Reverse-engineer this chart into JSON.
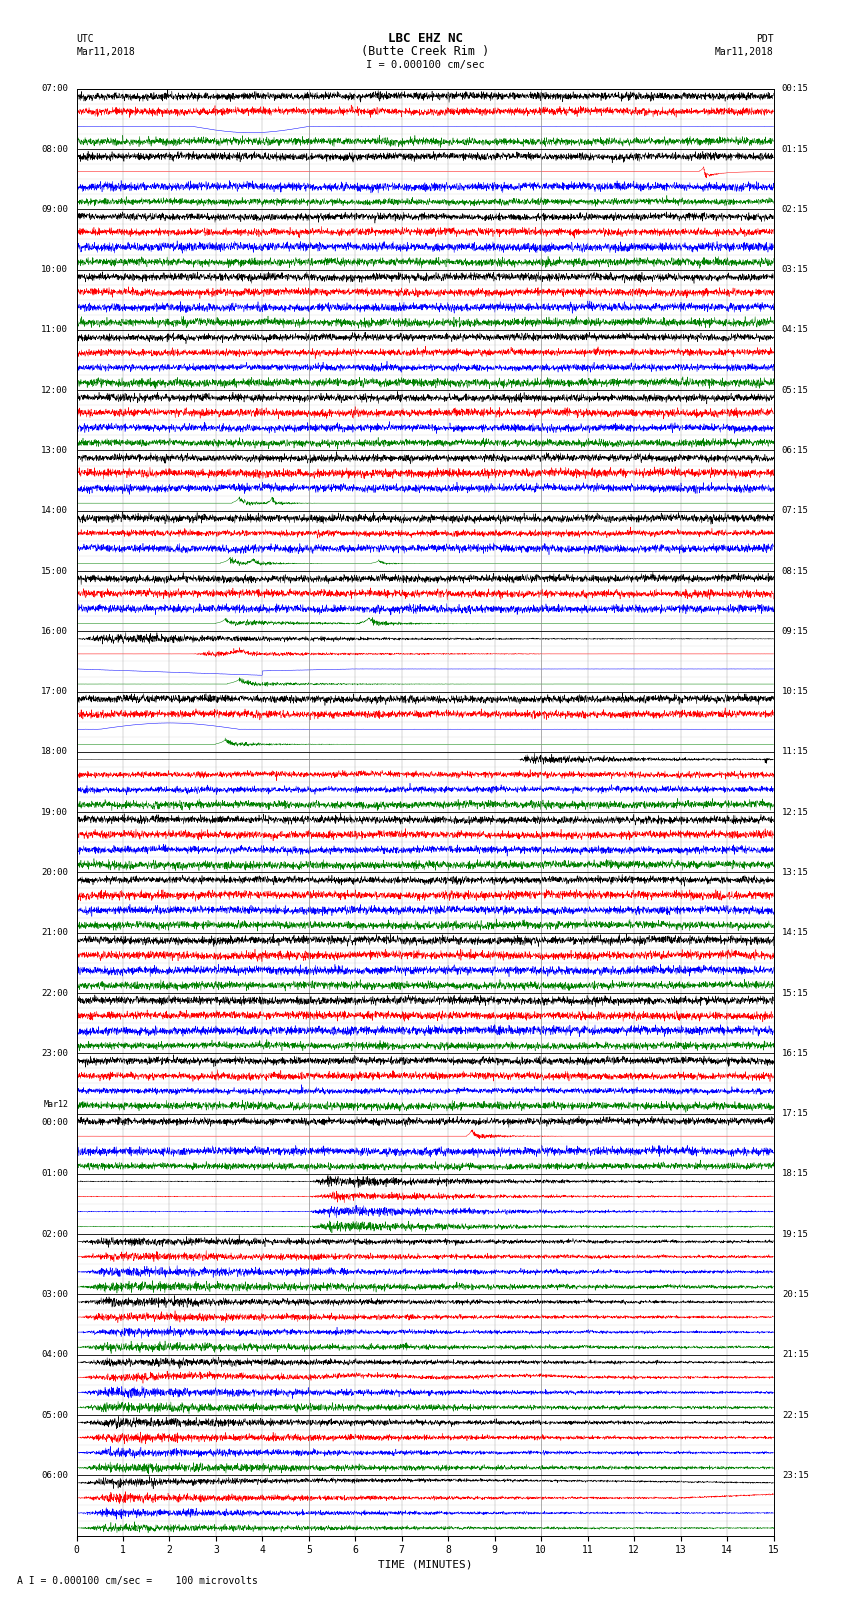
{
  "title_line1": "LBC EHZ NC",
  "title_line2": "(Butte Creek Rim )",
  "scale_label": "I = 0.000100 cm/sec",
  "left_label_top": "UTC",
  "left_label_date": "Mar11,2018",
  "right_label_top": "PDT",
  "right_label_date": "Mar11,2018",
  "xlabel": "TIME (MINUTES)",
  "footer": "A I = 0.000100 cm/sec =    100 microvolts",
  "utc_hour_labels": [
    "07:00",
    "08:00",
    "09:00",
    "10:00",
    "11:00",
    "12:00",
    "13:00",
    "14:00",
    "15:00",
    "16:00",
    "17:00",
    "18:00",
    "19:00",
    "20:00",
    "21:00",
    "22:00",
    "23:00",
    "Mar12\n00:00",
    "01:00",
    "02:00",
    "03:00",
    "04:00",
    "05:00",
    "06:00"
  ],
  "pdt_hour_labels": [
    "00:15",
    "01:15",
    "02:15",
    "03:15",
    "04:15",
    "05:15",
    "06:15",
    "07:15",
    "08:15",
    "09:15",
    "10:15",
    "11:15",
    "12:15",
    "13:15",
    "14:15",
    "15:15",
    "16:15",
    "17:15",
    "18:15",
    "19:15",
    "20:15",
    "21:15",
    "22:15",
    "23:15"
  ],
  "n_hours": 24,
  "n_traces_per_hour": 4,
  "trace_colors": [
    "black",
    "red",
    "blue",
    "green"
  ],
  "bg_color": "white",
  "grid_color": "#888888",
  "xmin": 0,
  "xmax": 15,
  "figsize": [
    8.5,
    16.13
  ],
  "dpi": 100
}
